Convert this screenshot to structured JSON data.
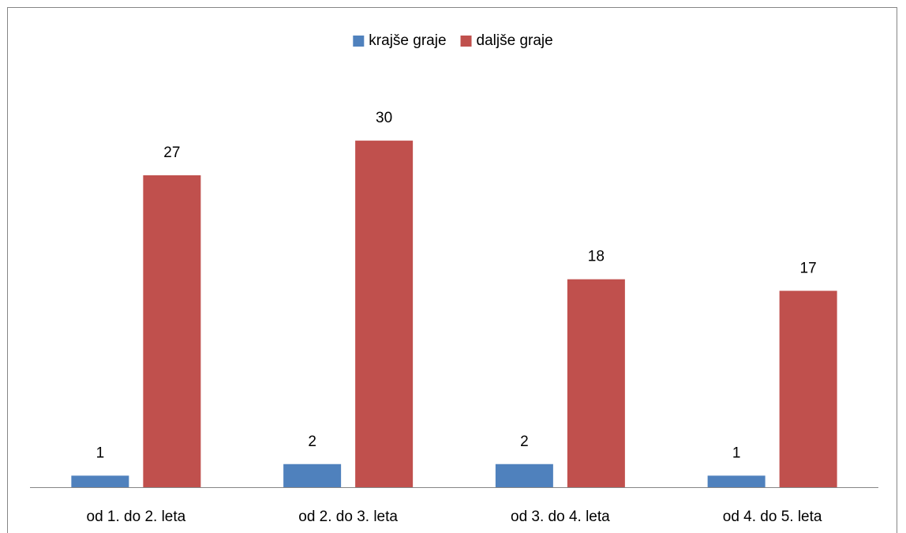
{
  "chart_data": {
    "type": "bar",
    "categories": [
      "od 1. do 2. leta",
      "od 2. do 3. leta",
      "od 3. do 4. leta",
      "od 4. do 5. leta"
    ],
    "series": [
      {
        "name": "krajše graje",
        "color": "#4f81bd",
        "values": [
          1,
          2,
          2,
          1
        ]
      },
      {
        "name": "daljše graje",
        "color": "#c0504d",
        "values": [
          27,
          30,
          18,
          17
        ]
      }
    ],
    "legend": "top"
  }
}
